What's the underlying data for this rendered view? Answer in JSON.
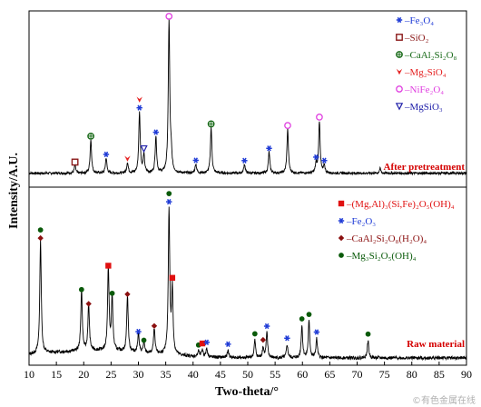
{
  "chart_data": {
    "type": "line",
    "xlabel": "Two-theta/°",
    "ylabel": "Intensity/A.U.",
    "xlim": [
      10,
      90
    ],
    "xticks": [
      10,
      15,
      20,
      25,
      30,
      35,
      40,
      45,
      50,
      55,
      60,
      65,
      70,
      75,
      80,
      85,
      90
    ],
    "series": [
      {
        "name": "After pretreatment",
        "peaks": [
          [
            18.4,
            0.05
          ],
          [
            21.3,
            0.22
          ],
          [
            24.1,
            0.1
          ],
          [
            28.0,
            0.07
          ],
          [
            30.2,
            0.4
          ],
          [
            31.0,
            0.12
          ],
          [
            33.2,
            0.24
          ],
          [
            35.6,
            1.0
          ],
          [
            36.0,
            0.1
          ],
          [
            40.5,
            0.06
          ],
          [
            43.3,
            0.3
          ],
          [
            49.4,
            0.06
          ],
          [
            53.9,
            0.14
          ],
          [
            57.3,
            0.29
          ],
          [
            62.5,
            0.06
          ],
          [
            63.1,
            0.34
          ],
          [
            64.0,
            0.05
          ],
          [
            74.2,
            0.03
          ]
        ],
        "peak_markers": [
          {
            "x": 18.4,
            "phase": "SiO2"
          },
          {
            "x": 21.3,
            "phase": "CaAl2Si2O8"
          },
          {
            "x": 24.1,
            "phase": "Fe3O4"
          },
          {
            "x": 28.0,
            "phase": "Mg2SiO4"
          },
          {
            "x": 30.2,
            "phase": "Fe3O4"
          },
          {
            "x": 30.2,
            "phase": "Mg2SiO4"
          },
          {
            "x": 31.0,
            "phase": "MgSiO3"
          },
          {
            "x": 33.2,
            "phase": "Fe3O4"
          },
          {
            "x": 35.6,
            "phase": "NiFe2O4"
          },
          {
            "x": 40.5,
            "phase": "Fe3O4"
          },
          {
            "x": 43.3,
            "phase": "CaAl2Si2O8"
          },
          {
            "x": 49.4,
            "phase": "Fe3O4"
          },
          {
            "x": 53.9,
            "phase": "Fe3O4"
          },
          {
            "x": 57.3,
            "phase": "NiFe2O4"
          },
          {
            "x": 62.5,
            "phase": "Fe3O4"
          },
          {
            "x": 63.1,
            "phase": "NiFe2O4"
          },
          {
            "x": 64.0,
            "phase": "Fe3O4"
          }
        ]
      },
      {
        "name": "Raw material",
        "peaks": [
          [
            12.1,
            0.78
          ],
          [
            19.6,
            0.42
          ],
          [
            20.9,
            0.32
          ],
          [
            24.5,
            0.57
          ],
          [
            25.2,
            0.37
          ],
          [
            28.0,
            0.39
          ],
          [
            30.0,
            0.13
          ],
          [
            31.0,
            0.07
          ],
          [
            32.9,
            0.17
          ],
          [
            35.6,
            1.0
          ],
          [
            36.2,
            0.44
          ],
          [
            41.0,
            0.04
          ],
          [
            41.7,
            0.05
          ],
          [
            42.5,
            0.06
          ],
          [
            46.4,
            0.05
          ],
          [
            51.3,
            0.12
          ],
          [
            52.8,
            0.07
          ],
          [
            53.5,
            0.17
          ],
          [
            57.2,
            0.09
          ],
          [
            59.9,
            0.22
          ],
          [
            61.2,
            0.25
          ],
          [
            62.6,
            0.13
          ],
          [
            72.0,
            0.12
          ]
        ],
        "peak_markers": [
          {
            "x": 12.1,
            "phase": "CaAl2Si2O8(H2O)4"
          },
          {
            "x": 12.1,
            "phase": "Mg3Si2O5(OH)4"
          },
          {
            "x": 19.6,
            "phase": "Mg3Si2O5(OH)4"
          },
          {
            "x": 20.9,
            "phase": "CaAl2Si2O8(H2O)4"
          },
          {
            "x": 24.5,
            "phase": "(Mg,Al)3(Si,Fe)2O5(OH)4"
          },
          {
            "x": 25.2,
            "phase": "Mg3Si2O5(OH)4"
          },
          {
            "x": 28.0,
            "phase": "CaAl2Si2O8(H2O)4"
          },
          {
            "x": 30.0,
            "phase": "Fe2O3"
          },
          {
            "x": 31.0,
            "phase": "Mg3Si2O5(OH)4"
          },
          {
            "x": 32.9,
            "phase": "CaAl2Si2O8(H2O)4"
          },
          {
            "x": 35.6,
            "phase": "Fe2O3"
          },
          {
            "x": 35.6,
            "phase": "Mg3Si2O5(OH)4"
          },
          {
            "x": 36.2,
            "phase": "(Mg,Al)3(Si,Fe)2O5(OH)4"
          },
          {
            "x": 41.0,
            "phase": "Mg3Si2O5(OH)4"
          },
          {
            "x": 41.7,
            "phase": "(Mg,Al)3(Si,Fe)2O5(OH)4"
          },
          {
            "x": 42.5,
            "phase": "Fe2O3"
          },
          {
            "x": 46.4,
            "phase": "Fe2O3"
          },
          {
            "x": 51.3,
            "phase": "Mg3Si2O5(OH)4"
          },
          {
            "x": 52.8,
            "phase": "CaAl2Si2O8(H2O)4"
          },
          {
            "x": 53.5,
            "phase": "Fe2O3"
          },
          {
            "x": 57.2,
            "phase": "Fe2O3"
          },
          {
            "x": 59.9,
            "phase": "Mg3Si2O5(OH)4"
          },
          {
            "x": 61.2,
            "phase": "Mg3Si2O5(OH)4"
          },
          {
            "x": 62.6,
            "phase": "Fe2O3"
          },
          {
            "x": 72.0,
            "phase": "Mg3Si2O5(OH)4"
          }
        ]
      }
    ],
    "legend_top": [
      {
        "phase": "Fe3O4",
        "marker": "asterisk",
        "color": "#1f3bd6"
      },
      {
        "phase": "SiO2",
        "marker": "open-square",
        "color": "#8b1a1a"
      },
      {
        "phase": "CaAl2Si2O8",
        "marker": "open-circle-cross",
        "color": "#1a6b1a"
      },
      {
        "phase": "Mg2SiO4",
        "marker": "arrowhead",
        "color": "#e52222"
      },
      {
        "phase": "NiFe2O4",
        "marker": "open-circle",
        "color": "#e040e0"
      },
      {
        "phase": "MgSiO3",
        "marker": "open-triangle-down",
        "color": "#2222aa"
      }
    ],
    "legend_bottom": [
      {
        "phase": "(Mg,Al)3(Si,Fe)2O5(OH)4",
        "marker": "filled-square",
        "color": "#e01010"
      },
      {
        "phase": "Fe2O3",
        "marker": "asterisk",
        "color": "#1f3bd6"
      },
      {
        "phase": "CaAl2Si2O8(H2O)4",
        "marker": "filled-diamond",
        "color": "#8b1010"
      },
      {
        "phase": "Mg3Si2O5(OH)4",
        "marker": "filled-circle",
        "color": "#0a5a0a"
      }
    ],
    "legend_top_labels": [
      "–Fe₃O₄",
      "–SiO₂",
      "–CaAl₂Si₂O₈",
      "–Mg₂SiO₄",
      "–NiFe₂O₄",
      "–MgSiO₃"
    ],
    "legend_bottom_labels": [
      "–(Mg,Al)₃(Si,Fe)₂O₅(OH)₄",
      "–Fe₂O₃",
      "–CaAl₂Si₂O₈(H₂O)₄",
      "–Mg₃Si₂O₅(OH)₄"
    ],
    "panel_labels": {
      "top": "After pretreatment",
      "bottom": "Raw material"
    },
    "grid": false,
    "legend_placement": "top-right of each panel"
  },
  "watermark": "©有色金属在线"
}
